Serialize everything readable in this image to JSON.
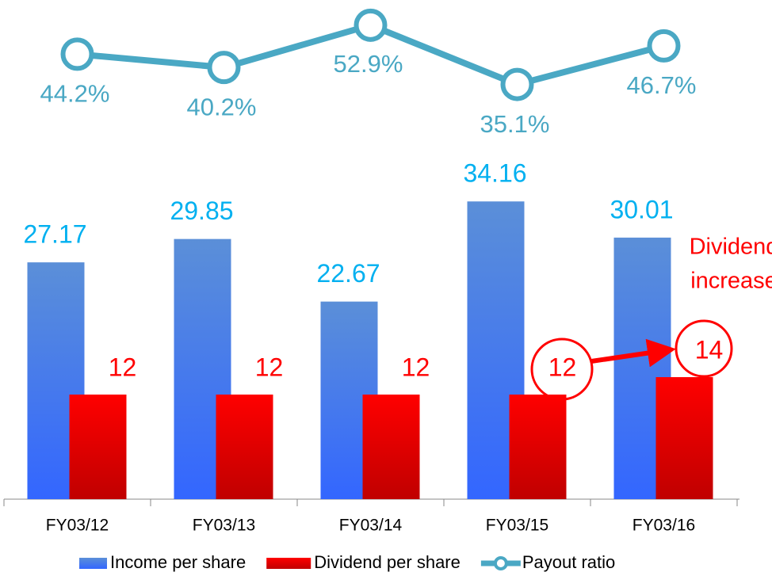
{
  "chart_data": {
    "type": "bar",
    "categories": [
      "FY03/12",
      "FY03/13",
      "FY03/14",
      "FY03/15",
      "FY03/16"
    ],
    "series": [
      {
        "name": "Income per share",
        "color": "#4f86e0",
        "values": [
          27.17,
          29.85,
          22.67,
          34.16,
          30.01
        ]
      },
      {
        "name": "Dividend per share",
        "color": "#ff0000",
        "values": [
          12,
          12,
          12,
          12,
          14
        ]
      },
      {
        "name": "Payout ratio",
        "color": "#4aa8c4",
        "type": "line",
        "axis": "y2",
        "values": [
          44.2,
          40.2,
          52.9,
          35.1,
          46.7
        ],
        "value_labels": [
          "44.2%",
          "40.2%",
          "52.9%",
          "35.1%",
          "46.7%"
        ]
      }
    ],
    "ylim": [
      0,
      40
    ],
    "y2lim": [
      30,
      60
    ],
    "annotation": [
      "Dividend",
      "increase"
    ],
    "legend": "bottom"
  }
}
